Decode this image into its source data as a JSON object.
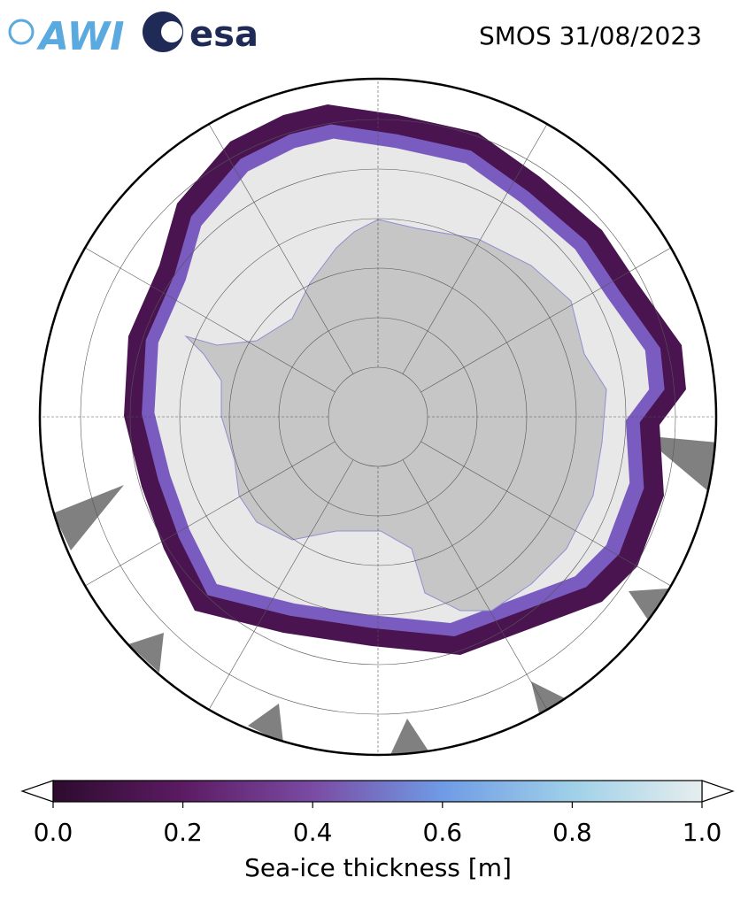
{
  "header": {
    "title": "SMOS 31/08/2023"
  },
  "logos": {
    "awi": "AWI",
    "esa": "esa"
  },
  "colorbar": {
    "label": "Sea-ice thickness [m]",
    "lim": [
      0,
      1
    ],
    "ticks": [
      {
        "value": 0,
        "label": "0.0"
      },
      {
        "value": 0.2,
        "label": "0.2"
      },
      {
        "value": 0.4,
        "label": "0.4"
      },
      {
        "value": 0.6,
        "label": "0.6"
      },
      {
        "value": 0.8,
        "label": "0.8"
      },
      {
        "value": 1,
        "label": "1.0"
      }
    ],
    "colors": [
      "#2d0b2e",
      "#5c1b63",
      "#7a4ba3",
      "#6f9be6",
      "#9fd0e8",
      "#e6eeee"
    ]
  }
}
